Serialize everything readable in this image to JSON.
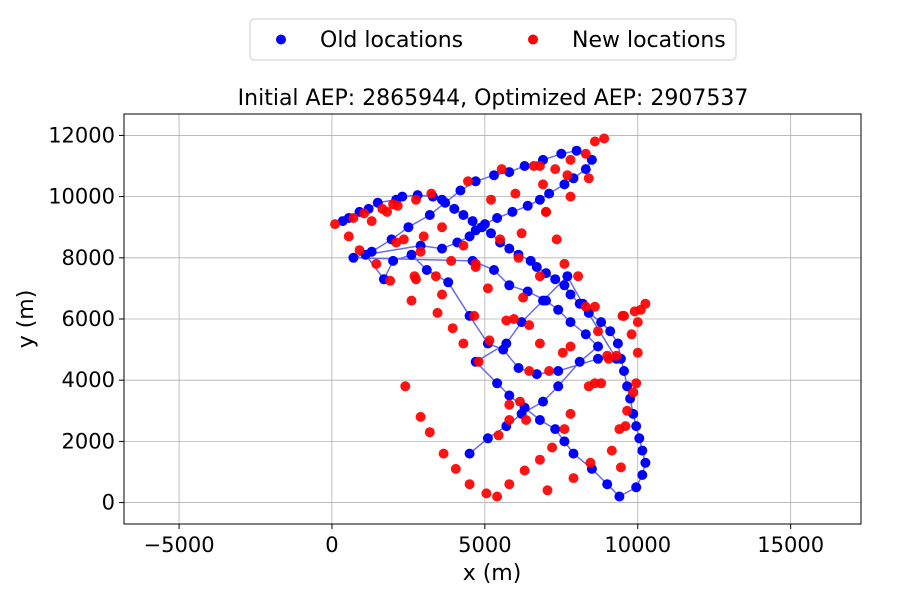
{
  "chart_data": {
    "type": "scatter",
    "title": "Initial AEP: 2865944, Optimized AEP: 2907537",
    "xlabel": "x (m)",
    "ylabel": "y (m)",
    "xlim": [
      -6800,
      17300
    ],
    "ylim": [
      -700,
      12700
    ],
    "x_ticks": [
      -5000,
      0,
      5000,
      10000,
      15000
    ],
    "y_ticks": [
      0,
      2000,
      4000,
      6000,
      8000,
      10000,
      12000
    ],
    "x_tick_labels": [
      "−5000",
      "0",
      "5000",
      "10000",
      "15000"
    ],
    "y_tick_labels": [
      "0",
      "2000",
      "4000",
      "6000",
      "8000",
      "10000",
      "12000"
    ],
    "grid": true,
    "legend": {
      "position": "top-center (outside, above plot)"
    },
    "series": [
      {
        "name": "Old locations",
        "color": "#0000ff",
        "x": [
          350,
          550,
          900,
          1200,
          1500,
          2100,
          2300,
          2800,
          3300,
          3600,
          4000,
          4300,
          4600,
          4900,
          5200,
          5500,
          5800,
          6100,
          6500,
          6700,
          7000,
          7300,
          7600,
          7800,
          8100,
          8400,
          8800,
          9100,
          9350,
          9450,
          9550,
          9650,
          9750,
          9850,
          9950,
          10050,
          10150,
          10250,
          10150,
          9950,
          9400,
          9000,
          8500,
          7900,
          7600,
          7300,
          6800,
          6300,
          5800,
          5400,
          4700,
          5700,
          6200,
          6900,
          7700,
          8200,
          9300,
          8700,
          7400,
          6700,
          6100,
          5600,
          5100,
          4500,
          3800,
          3100,
          2600,
          2000,
          1700,
          1100,
          2900,
          3600,
          4100,
          4500,
          4700,
          5000,
          5400,
          5900,
          6400,
          6800,
          7100,
          7600,
          7900,
          8300,
          8500,
          8000,
          7500,
          6900,
          6300,
          5800,
          5300,
          4700,
          4200,
          3700,
          3200,
          2500,
          1950,
          1300,
          700,
          4600,
          5300,
          5800,
          6400,
          7000,
          7400,
          7800,
          8300,
          8700,
          8100,
          7400,
          6900,
          6200,
          5700,
          5100,
          4500
        ],
        "y": [
          9200,
          9300,
          9500,
          9600,
          9800,
          9900,
          10000,
          10050,
          10000,
          9900,
          9600,
          9400,
          9200,
          9000,
          8800,
          8500,
          8300,
          8100,
          7900,
          7700,
          7500,
          7300,
          7100,
          6800,
          6500,
          6200,
          5900,
          5600,
          5200,
          4700,
          4300,
          3800,
          3400,
          2900,
          2500,
          2100,
          1700,
          1300,
          900,
          500,
          200,
          600,
          1100,
          1600,
          2000,
          2400,
          2700,
          3100,
          3500,
          3900,
          4600,
          5200,
          5900,
          6600,
          7400,
          6500,
          4700,
          4700,
          4300,
          4200,
          4400,
          5000,
          5200,
          6100,
          7200,
          7600,
          8100,
          7900,
          7300,
          8100,
          8400,
          8300,
          8500,
          8700,
          8900,
          9100,
          9300,
          9500,
          9700,
          9900,
          10100,
          10400,
          10600,
          10900,
          11200,
          11500,
          11400,
          11200,
          11000,
          10800,
          10700,
          10500,
          10200,
          9800,
          9400,
          9000,
          8600,
          8200,
          8000,
          7900,
          7600,
          7100,
          6900,
          6600,
          6300,
          5900,
          5500,
          5100,
          4600,
          3800,
          3300,
          2900,
          2500,
          2100,
          1600
        ],
        "line_color": "#6a6af0",
        "line_width": 1.5
      },
      {
        "name": "New locations",
        "color": "#ff0000",
        "x": [
          100,
          550,
          900,
          1450,
          1900,
          2150,
          2600,
          2750,
          3250,
          3600,
          4450,
          4700,
          5550,
          5700,
          6250,
          6600,
          7000,
          6800,
          6450,
          6150,
          5800,
          5450,
          4800,
          4300,
          3950,
          3450,
          3000,
          2750,
          2100,
          1650,
          1050,
          700,
          2000,
          2700,
          3600,
          4650,
          5150,
          5950,
          6450,
          6800,
          7350,
          7600,
          8050,
          8300,
          8600,
          8700,
          9450,
          9600,
          9850,
          9950,
          10000,
          10100,
          10250,
          9900,
          9500,
          9300,
          9050,
          8800,
          8400,
          7800,
          7600,
          7200,
          6800,
          6300,
          5800,
          5400,
          5050,
          4500,
          4050,
          3650,
          3200,
          2900,
          2400,
          7100,
          7550,
          7800,
          8600,
          9000,
          9550,
          9800,
          10000,
          9650,
          9400,
          9150,
          8450,
          7900,
          7050,
          6350,
          5800,
          5100,
          4700,
          4300,
          3900,
          3400,
          2900,
          2350,
          1800,
          1300,
          6100,
          6800,
          7300,
          7800,
          8300,
          8600,
          8900,
          8400,
          7800,
          7000,
          6200,
          5500,
          5200,
          6000,
          6900,
          7700
        ],
        "y": [
          9100,
          8700,
          8250,
          7800,
          7250,
          9700,
          6600,
          7300,
          10100,
          9000,
          10500,
          7700,
          10900,
          5950,
          6700,
          11000,
          9500,
          5200,
          4300,
          3300,
          2700,
          2200,
          4600,
          5200,
          5700,
          6200,
          8700,
          9900,
          8500,
          9600,
          9450,
          9300,
          9750,
          7400,
          6800,
          6100,
          5300,
          6000,
          5800,
          7400,
          8600,
          7800,
          7400,
          6400,
          6400,
          5600,
          1150,
          2500,
          3600,
          3900,
          4900,
          6300,
          6500,
          6250,
          6100,
          4800,
          4700,
          3900,
          3800,
          2900,
          2400,
          1800,
          1400,
          1050,
          600,
          200,
          300,
          600,
          1100,
          1600,
          2300,
          2800,
          3800,
          4300,
          4900,
          5100,
          3900,
          4800,
          6100,
          5500,
          5900,
          3000,
          2400,
          1700,
          1300,
          800,
          400,
          2700,
          3200,
          7000,
          7800,
          8400,
          7900,
          7400,
          8200,
          8600,
          9500,
          9200,
          8000,
          11000,
          10900,
          11200,
          11400,
          11800,
          11900,
          10600,
          10000,
          9500,
          8800,
          8600,
          9900,
          10100,
          10400,
          10700
        ],
        "line_color": null
      }
    ]
  }
}
